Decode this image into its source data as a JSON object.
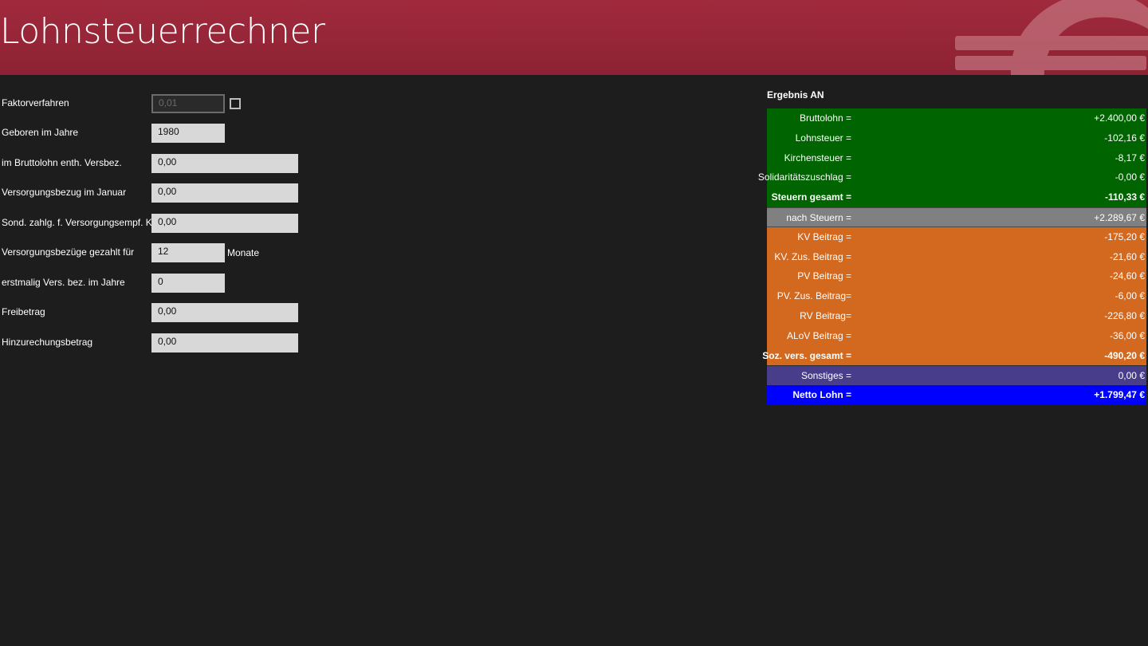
{
  "header": {
    "title": "Lohnsteuerrechner",
    "logo_icon": "euro-icon",
    "background": "#9a2638"
  },
  "form": {
    "faktorverfahren": {
      "label": "Faktorverfahren",
      "value": "0,01",
      "checked": false
    },
    "geboren": {
      "label": "Geboren im Jahre",
      "value": "1980"
    },
    "brutto_versbez": {
      "label": "im Bruttolohn enth. Versbez.",
      "value": "0,00"
    },
    "versbez_januar": {
      "label": "Versorgungsbezug im Januar",
      "value": "0,00"
    },
    "sond_zahlg": {
      "label": "Sond. zahlg. f. Versorgungsempf. Kj.",
      "value": "0,00"
    },
    "versbez_monate": {
      "label": "Versorgungsbezüge gezahlt für",
      "value": "12",
      "unit": "Monate"
    },
    "erstmalig": {
      "label": "erstmalig Vers. bez. im Jahre",
      "value": "0"
    },
    "freibetrag": {
      "label": "Freibetrag",
      "value": "0,00"
    },
    "hinzurechnung": {
      "label": "Hinzurechungsbetrag",
      "value": "0,00"
    }
  },
  "results": {
    "title": "Ergebnis AN",
    "rows": [
      {
        "label": "Bruttolohn =",
        "value": "+2.400,00 €"
      },
      {
        "label": "Lohnsteuer =",
        "value": "-102,16 €"
      },
      {
        "label": "Kirchensteuer =",
        "value": "-8,17 €"
      },
      {
        "label": "Solidaritätszuschlag =",
        "value": "-0,00 €"
      },
      {
        "label": "Steuern gesamt =",
        "value": "-110,33 €"
      },
      {
        "label": "nach Steuern =",
        "value": "+2.289,67 €"
      },
      {
        "label": "KV Beitrag =",
        "value": "-175,20 €"
      },
      {
        "label": "KV. Zus. Beitrag =",
        "value": "-21,60 €"
      },
      {
        "label": "PV Beitrag =",
        "value": "-24,60 €"
      },
      {
        "label": "PV. Zus. Beitrag=",
        "value": "-6,00 €"
      },
      {
        "label": "RV Beitrag=",
        "value": "-226,80 €"
      },
      {
        "label": "ALoV Beitrag =",
        "value": "-36,00 €"
      },
      {
        "label": "Soz. vers. gesamt =",
        "value": "-490,20 €"
      },
      {
        "label": "Sonstiges =",
        "value": "0,00 €"
      },
      {
        "label": "Netto Lohn =",
        "value": "+1.799,47 €"
      }
    ],
    "colors": {
      "steuern": "#006400",
      "nach_steuern": "#808080",
      "sozialversicherung": "#d2691e",
      "sonstiges": "#483d8b",
      "netto": "#0000ff"
    }
  }
}
